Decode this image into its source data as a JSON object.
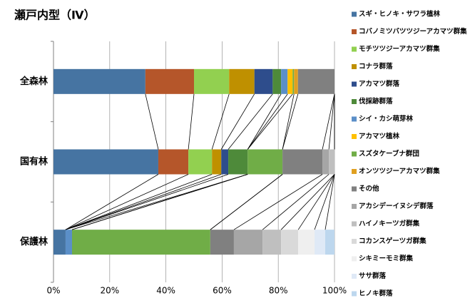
{
  "chart_data": {
    "type": "stacked_bar_100",
    "title": "瀬戸内型（Ⅳ）",
    "categories": [
      "全森林",
      "国有林",
      "保護林"
    ],
    "xlim": [
      0,
      100
    ],
    "xticks": [
      {
        "value": 0,
        "label": "0%"
      },
      {
        "value": 20,
        "label": "20%"
      },
      {
        "value": 40,
        "label": "40%"
      },
      {
        "value": 60,
        "label": "60%"
      },
      {
        "value": 80,
        "label": "80%"
      },
      {
        "value": 100,
        "label": "100%"
      }
    ],
    "grid": true,
    "series": [
      {
        "name": "スギ・ヒノキ・サワラ植林",
        "color": "#4674a2",
        "values": [
          32.7,
          37.3,
          4.3
        ]
      },
      {
        "name": "コバノミツバツツジーアカマツ群集",
        "color": "#b5562a",
        "values": [
          17.3,
          10.7,
          0
        ]
      },
      {
        "name": "モチツツジーアカマツ群集",
        "color": "#92d050",
        "values": [
          12.5,
          8.4,
          0
        ]
      },
      {
        "name": "コナラ群落",
        "color": "#bf9000",
        "values": [
          9,
          3.3,
          0
        ]
      },
      {
        "name": "アカマツ群落",
        "color": "#2e4d8c",
        "values": [
          6.5,
          2.5,
          0
        ]
      },
      {
        "name": "伐採跡群落",
        "color": "#4e8a3a",
        "values": [
          3,
          6.9,
          0
        ]
      },
      {
        "name": "シイ・カシ萌芽林",
        "color": "#5b8fc8",
        "values": [
          2.3,
          0,
          2.3
        ]
      },
      {
        "name": "アカマツ植林",
        "color": "#ffc000",
        "values": [
          1.8,
          0,
          0
        ]
      },
      {
        "name": "スズタケーブナ群団",
        "color": "#70ad47",
        "values": [
          0.5,
          12.4,
          49.2
        ]
      },
      {
        "name": "オンツツジーアカマツ群集",
        "color": "#e0a020",
        "values": [
          1.4,
          0,
          0
        ]
      },
      {
        "name": "その他",
        "color": "#808080",
        "values": [
          13,
          14.2,
          8.4
        ]
      },
      {
        "name": "アカシデーイヌシデ群落",
        "color": "#a6a6a6",
        "values": [
          0,
          2.3,
          10.2
        ]
      },
      {
        "name": "ハイノキーツガ群集",
        "color": "#bfbfbf",
        "values": [
          0,
          2,
          6.6
        ]
      },
      {
        "name": "コカンスゲーツガ群集",
        "color": "#d9d9d9",
        "values": [
          0,
          0,
          6.1
        ]
      },
      {
        "name": "シキミーモミ群集",
        "color": "#efefef",
        "values": [
          0,
          0,
          5.8
        ]
      },
      {
        "name": "ササ群落",
        "color": "#dfe9f6",
        "values": [
          0,
          0,
          3.8
        ]
      },
      {
        "name": "ヒノキ群落",
        "color": "#bdd7ee",
        "values": [
          0,
          0,
          3.3
        ]
      }
    ]
  }
}
